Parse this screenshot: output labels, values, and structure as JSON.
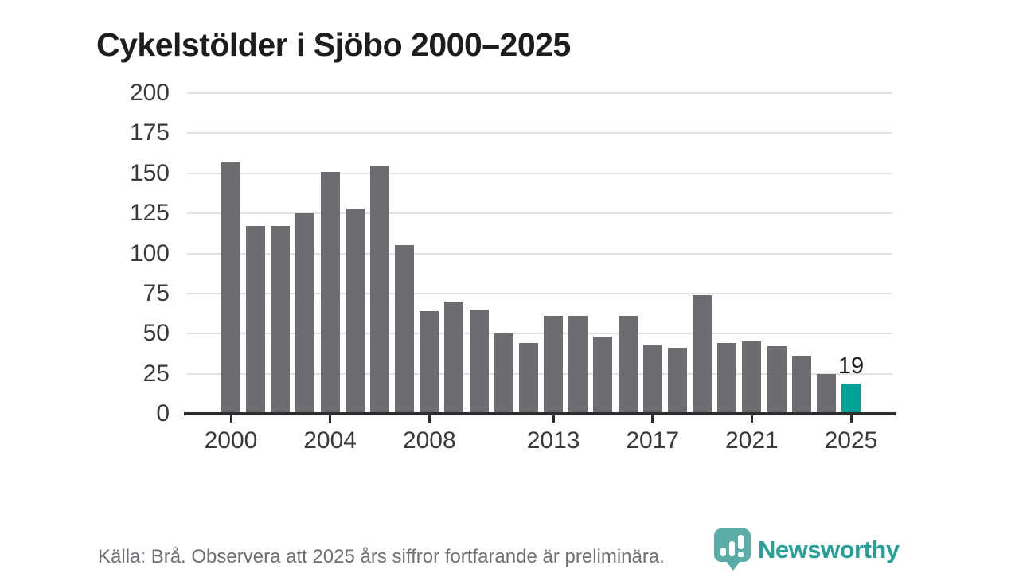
{
  "header": {
    "title": "Cykelstölder i Sjöbo 2000–2025"
  },
  "chart_data": {
    "type": "bar",
    "title": "Cykelstölder i Sjöbo 2000–2025",
    "categories": [
      2000,
      2001,
      2002,
      2003,
      2004,
      2005,
      2006,
      2007,
      2008,
      2009,
      2010,
      2011,
      2012,
      2013,
      2014,
      2015,
      2016,
      2017,
      2018,
      2019,
      2020,
      2021,
      2022,
      2023,
      2024,
      2025
    ],
    "values": [
      157,
      117,
      117,
      125,
      151,
      128,
      155,
      105,
      64,
      70,
      65,
      50,
      44,
      61,
      61,
      48,
      61,
      43,
      41,
      74,
      44,
      45,
      42,
      36,
      25,
      19
    ],
    "xlabel": "",
    "ylabel": "",
    "ylim": [
      0,
      200
    ],
    "yticks": [
      0,
      25,
      50,
      75,
      100,
      125,
      150,
      175,
      200
    ],
    "xticks": [
      {
        "index": 0,
        "label": "2000"
      },
      {
        "index": 4,
        "label": "2004"
      },
      {
        "index": 8,
        "label": "2008"
      },
      {
        "index": 13,
        "label": "2013"
      },
      {
        "index": 17,
        "label": "2017"
      },
      {
        "index": 21,
        "label": "2021"
      },
      {
        "index": 25,
        "label": "2025"
      }
    ],
    "grid": "horizontal",
    "legend": "none",
    "bar_color": "#6c6c71",
    "highlight": {
      "index": 25,
      "label": "19",
      "color": "#00a296"
    }
  },
  "footer": {
    "source_note": "Källa: Brå. Observera att 2025 års siffror fortfarande är preliminära.",
    "logo_text": "Newsworthy"
  },
  "colors": {
    "bar_gray": "#6c6c71",
    "bar_teal": "#00a296",
    "gridline": "#e2e2e2",
    "axis": "#2d2d2d",
    "tick_label": "#3a3a3a",
    "footer_text": "#6e7076",
    "logo_teal": "#27a098"
  }
}
